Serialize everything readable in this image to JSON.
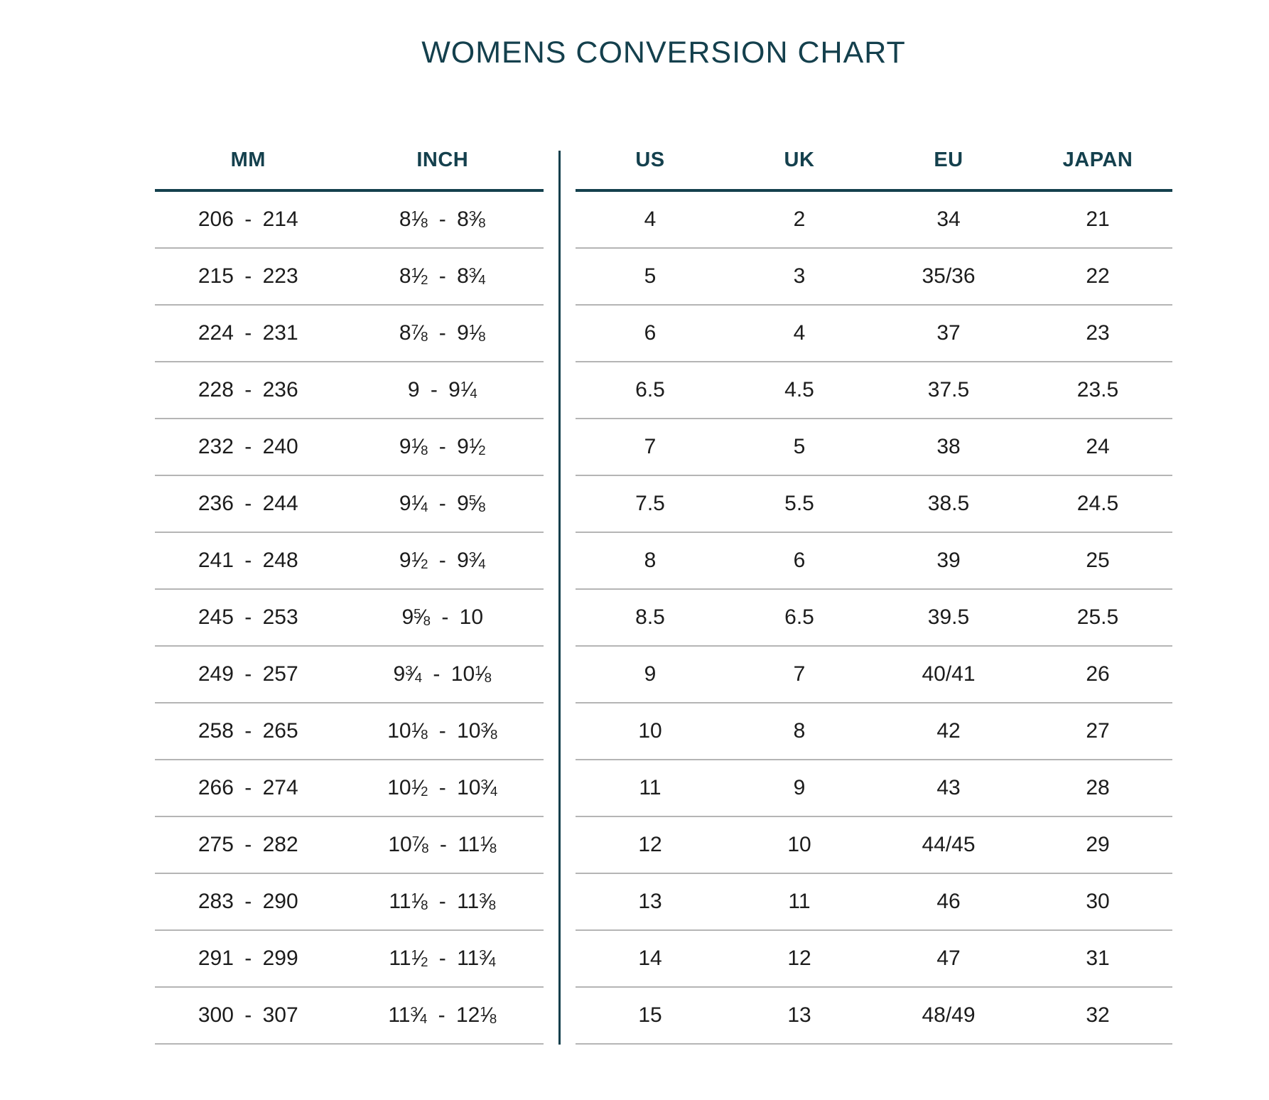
{
  "title": "WOMENS CONVERSION CHART",
  "theme": {
    "accent": "#14404d",
    "text": "#1c1c1c",
    "separator": "#b5b5b5",
    "background": "#ffffff"
  },
  "chart_data": {
    "type": "table",
    "title": "WOMENS CONVERSION CHART",
    "layout": "two panels separated by a vertical rule; left panel = foot length, right panel = sizes",
    "left_columns": [
      "MM",
      "INCH"
    ],
    "right_columns": [
      "US",
      "UK",
      "EU",
      "JAPAN"
    ],
    "rows": [
      {
        "mm": "206 - 214",
        "inch": "8 1/8 - 8 3/8",
        "us": "4",
        "uk": "2",
        "eu": "34",
        "japan": "21"
      },
      {
        "mm": "215 - 223",
        "inch": "8 1/2 - 8 3/4",
        "us": "5",
        "uk": "3",
        "eu": "35/36",
        "japan": "22"
      },
      {
        "mm": "224 - 231",
        "inch": "8 7/8 - 9 1/8",
        "us": "6",
        "uk": "4",
        "eu": "37",
        "japan": "23"
      },
      {
        "mm": "228 - 236",
        "inch": "9 - 9 1/4",
        "us": "6.5",
        "uk": "4.5",
        "eu": "37.5",
        "japan": "23.5"
      },
      {
        "mm": "232 - 240",
        "inch": "9 1/8 - 9 1/2",
        "us": "7",
        "uk": "5",
        "eu": "38",
        "japan": "24"
      },
      {
        "mm": "236 - 244",
        "inch": "9 1/4 - 9 5/8",
        "us": "7.5",
        "uk": "5.5",
        "eu": "38.5",
        "japan": "24.5"
      },
      {
        "mm": "241 - 248",
        "inch": "9 1/2 - 9 3/4",
        "us": "8",
        "uk": "6",
        "eu": "39",
        "japan": "25"
      },
      {
        "mm": "245 - 253",
        "inch": "9 5/8 - 10",
        "us": "8.5",
        "uk": "6.5",
        "eu": "39.5",
        "japan": "25.5"
      },
      {
        "mm": "249 - 257",
        "inch": "9 3/4 - 10 1/8",
        "us": "9",
        "uk": "7",
        "eu": "40/41",
        "japan": "26"
      },
      {
        "mm": "258 - 265",
        "inch": "10 1/8 - 10 3/8",
        "us": "10",
        "uk": "8",
        "eu": "42",
        "japan": "27"
      },
      {
        "mm": "266 - 274",
        "inch": "10 1/2 - 10 3/4",
        "us": "11",
        "uk": "9",
        "eu": "43",
        "japan": "28"
      },
      {
        "mm": "275 - 282",
        "inch": "10 7/8 - 11 1/8",
        "us": "12",
        "uk": "10",
        "eu": "44/45",
        "japan": "29"
      },
      {
        "mm": "283 - 290",
        "inch": "11 1/8 - 11 3/8",
        "us": "13",
        "uk": "11",
        "eu": "46",
        "japan": "30"
      },
      {
        "mm": "291 - 299",
        "inch": "11 1/2 - 11 3/4",
        "us": "14",
        "uk": "12",
        "eu": "47",
        "japan": "31"
      },
      {
        "mm": "300 - 307",
        "inch": "11 3/4 - 12 1/8",
        "us": "15",
        "uk": "13",
        "eu": "48/49",
        "japan": "32"
      }
    ]
  }
}
